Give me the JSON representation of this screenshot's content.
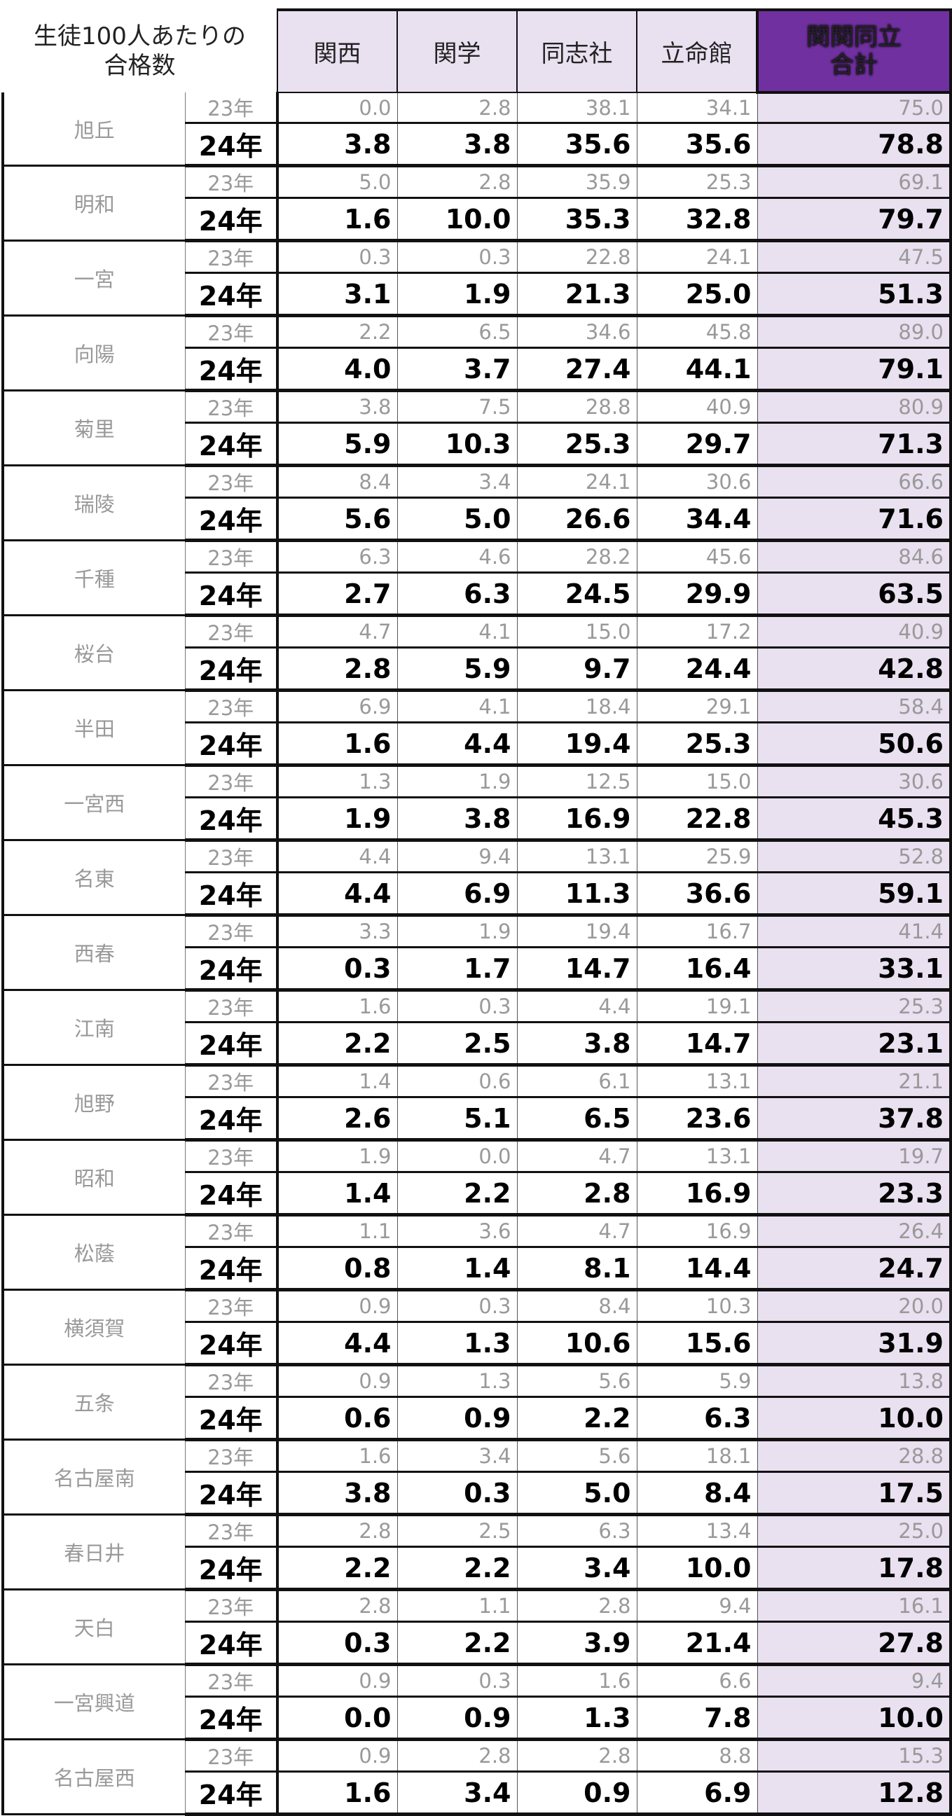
{
  "header": {
    "corner_line1": "生徒100人あたりの",
    "corner_line2": "合格数",
    "columns": [
      "関西",
      "関学",
      "同志社",
      "立命館"
    ],
    "total_line1": "関関同立",
    "total_line2": "合計"
  },
  "year_labels": {
    "prev": "23年",
    "curr": "24年"
  },
  "colors": {
    "header_bg": "#e9e0f0",
    "total_header_bg": "#7030a0",
    "prev_year_text": "#999999"
  },
  "schools": [
    {
      "name": "旭丘",
      "y23": [
        "0.0",
        "2.8",
        "38.1",
        "34.1",
        "75.0"
      ],
      "y24": [
        "3.8",
        "3.8",
        "35.6",
        "35.6",
        "78.8"
      ]
    },
    {
      "name": "明和",
      "y23": [
        "5.0",
        "2.8",
        "35.9",
        "25.3",
        "69.1"
      ],
      "y24": [
        "1.6",
        "10.0",
        "35.3",
        "32.8",
        "79.7"
      ]
    },
    {
      "name": "一宮",
      "y23": [
        "0.3",
        "0.3",
        "22.8",
        "24.1",
        "47.5"
      ],
      "y24": [
        "3.1",
        "1.9",
        "21.3",
        "25.0",
        "51.3"
      ]
    },
    {
      "name": "向陽",
      "y23": [
        "2.2",
        "6.5",
        "34.6",
        "45.8",
        "89.0"
      ],
      "y24": [
        "4.0",
        "3.7",
        "27.4",
        "44.1",
        "79.1"
      ]
    },
    {
      "name": "菊里",
      "y23": [
        "3.8",
        "7.5",
        "28.8",
        "40.9",
        "80.9"
      ],
      "y24": [
        "5.9",
        "10.3",
        "25.3",
        "29.7",
        "71.3"
      ]
    },
    {
      "name": "瑞陵",
      "y23": [
        "8.4",
        "3.4",
        "24.1",
        "30.6",
        "66.6"
      ],
      "y24": [
        "5.6",
        "5.0",
        "26.6",
        "34.4",
        "71.6"
      ]
    },
    {
      "name": "千種",
      "y23": [
        "6.3",
        "4.6",
        "28.2",
        "45.6",
        "84.6"
      ],
      "y24": [
        "2.7",
        "6.3",
        "24.5",
        "29.9",
        "63.5"
      ]
    },
    {
      "name": "桜台",
      "y23": [
        "4.7",
        "4.1",
        "15.0",
        "17.2",
        "40.9"
      ],
      "y24": [
        "2.8",
        "5.9",
        "9.7",
        "24.4",
        "42.8"
      ]
    },
    {
      "name": "半田",
      "y23": [
        "6.9",
        "4.1",
        "18.4",
        "29.1",
        "58.4"
      ],
      "y24": [
        "1.6",
        "4.4",
        "19.4",
        "25.3",
        "50.6"
      ]
    },
    {
      "name": "一宮西",
      "y23": [
        "1.3",
        "1.9",
        "12.5",
        "15.0",
        "30.6"
      ],
      "y24": [
        "1.9",
        "3.8",
        "16.9",
        "22.8",
        "45.3"
      ]
    },
    {
      "name": "名東",
      "y23": [
        "4.4",
        "9.4",
        "13.1",
        "25.9",
        "52.8"
      ],
      "y24": [
        "4.4",
        "6.9",
        "11.3",
        "36.6",
        "59.1"
      ]
    },
    {
      "name": "西春",
      "y23": [
        "3.3",
        "1.9",
        "19.4",
        "16.7",
        "41.4"
      ],
      "y24": [
        "0.3",
        "1.7",
        "14.7",
        "16.4",
        "33.1"
      ]
    },
    {
      "name": "江南",
      "y23": [
        "1.6",
        "0.3",
        "4.4",
        "19.1",
        "25.3"
      ],
      "y24": [
        "2.2",
        "2.5",
        "3.8",
        "14.7",
        "23.1"
      ]
    },
    {
      "name": "旭野",
      "y23": [
        "1.4",
        "0.6",
        "6.1",
        "13.1",
        "21.1"
      ],
      "y24": [
        "2.6",
        "5.1",
        "6.5",
        "23.6",
        "37.8"
      ]
    },
    {
      "name": "昭和",
      "y23": [
        "1.9",
        "0.0",
        "4.7",
        "13.1",
        "19.7"
      ],
      "y24": [
        "1.4",
        "2.2",
        "2.8",
        "16.9",
        "23.3"
      ]
    },
    {
      "name": "松蔭",
      "y23": [
        "1.1",
        "3.6",
        "4.7",
        "16.9",
        "26.4"
      ],
      "y24": [
        "0.8",
        "1.4",
        "8.1",
        "14.4",
        "24.7"
      ]
    },
    {
      "name": "横須賀",
      "y23": [
        "0.9",
        "0.3",
        "8.4",
        "10.3",
        "20.0"
      ],
      "y24": [
        "4.4",
        "1.3",
        "10.6",
        "15.6",
        "31.9"
      ]
    },
    {
      "name": "五条",
      "y23": [
        "0.9",
        "1.3",
        "5.6",
        "5.9",
        "13.8"
      ],
      "y24": [
        "0.6",
        "0.9",
        "2.2",
        "6.3",
        "10.0"
      ]
    },
    {
      "name": "名古屋南",
      "y23": [
        "1.6",
        "3.4",
        "5.6",
        "18.1",
        "28.8"
      ],
      "y24": [
        "3.8",
        "0.3",
        "5.0",
        "8.4",
        "17.5"
      ]
    },
    {
      "name": "春日井",
      "y23": [
        "2.8",
        "2.5",
        "6.3",
        "13.4",
        "25.0"
      ],
      "y24": [
        "2.2",
        "2.2",
        "3.4",
        "10.0",
        "17.8"
      ]
    },
    {
      "name": "天白",
      "y23": [
        "2.8",
        "1.1",
        "2.8",
        "9.4",
        "16.1"
      ],
      "y24": [
        "0.3",
        "2.2",
        "3.9",
        "21.4",
        "27.8"
      ]
    },
    {
      "name": "一宮興道",
      "y23": [
        "0.9",
        "0.3",
        "1.6",
        "6.6",
        "9.4"
      ],
      "y24": [
        "0.0",
        "0.9",
        "1.3",
        "7.8",
        "10.0"
      ]
    },
    {
      "name": "名古屋西",
      "y23": [
        "0.9",
        "2.8",
        "2.8",
        "8.8",
        "15.3"
      ],
      "y24": [
        "1.6",
        "3.4",
        "0.9",
        "6.9",
        "12.8"
      ]
    }
  ]
}
